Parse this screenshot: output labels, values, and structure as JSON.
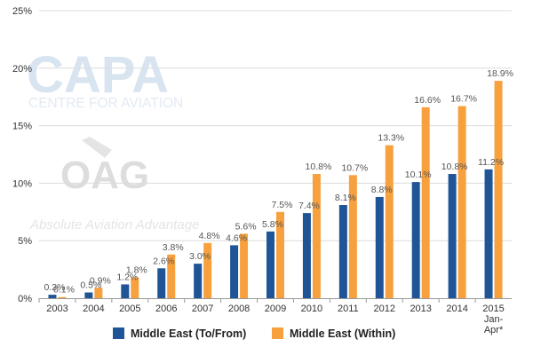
{
  "chart_data": {
    "type": "bar",
    "categories": [
      "2003",
      "2004",
      "2005",
      "2006",
      "2007",
      "2008",
      "2009",
      "2010",
      "2011",
      "2012",
      "2013",
      "2014",
      "2015\nJan-\nApr*"
    ],
    "series": [
      {
        "name": "Middle East (To/From)",
        "color": "#1f5597",
        "values": [
          0.3,
          0.5,
          1.2,
          2.6,
          3.0,
          4.6,
          5.8,
          7.4,
          8.1,
          8.8,
          10.1,
          10.8,
          11.2
        ],
        "labels": [
          "0.3%",
          "0.5%",
          "1.2%",
          "2.6%",
          "3.0%",
          "4.6%",
          "5.8%",
          "7.4%",
          "8.1%",
          "8.8%",
          "10.1%",
          "10.8%",
          "11.2%"
        ]
      },
      {
        "name": "Middle East (Within)",
        "color": "#f7a13e",
        "values": [
          0.1,
          0.9,
          1.8,
          3.8,
          4.8,
          5.6,
          7.5,
          10.8,
          10.7,
          13.3,
          16.6,
          16.7,
          18.9
        ],
        "labels": [
          "0.1%",
          "0.9%",
          "1.8%",
          "3.8%",
          "4.8%",
          "5.6%",
          "7.5%",
          "10.8%",
          "10.7%",
          "13.3%",
          "16.6%",
          "16.7%",
          "18.9%"
        ]
      }
    ],
    "yticks": [
      "0%",
      "5%",
      "10%",
      "15%",
      "20%",
      "25%"
    ],
    "ylim": [
      0,
      25
    ],
    "grid": true,
    "legend_position": "bottom",
    "title": "",
    "xlabel": "",
    "ylabel": ""
  },
  "watermark": {
    "capa_logo": "CAPA",
    "capa_sub": "CENTRE FOR AVIATION",
    "oag_logo": "OAG",
    "oag_tagline": "Absolute Aviation Advantage"
  }
}
